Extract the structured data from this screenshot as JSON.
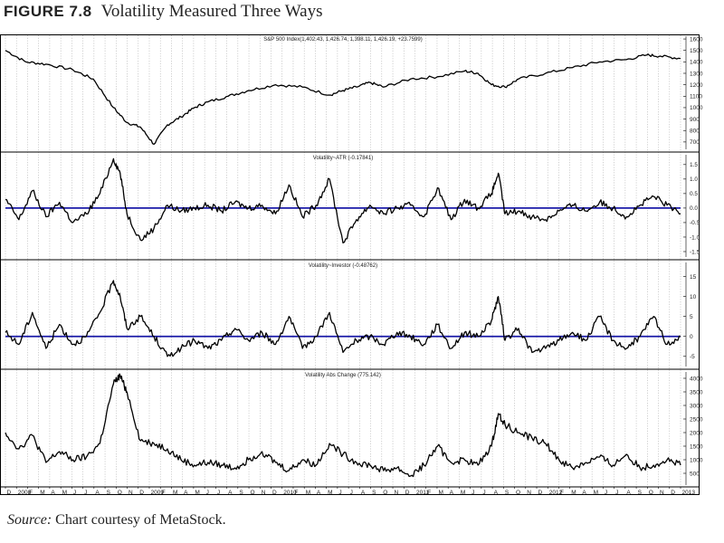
{
  "figure": {
    "number": "FIGURE 7.8",
    "title": "Volatility Measured Three Ways"
  },
  "source": {
    "prefix": "Source:",
    "text": "Chart courtesy of MetaStock."
  },
  "chart_data": [
    {
      "type": "line",
      "title": "S&P 500 Index(1,402.43, 1,426.74, 1,398.11, 1,426.19, +23.7599)",
      "yticks": [
        700,
        800,
        900,
        1000,
        1100,
        1200,
        1300,
        1400,
        1500,
        1600
      ],
      "ylim": [
        620,
        1640
      ],
      "series": [
        {
          "color": "#000000",
          "x": [
            0,
            0.03,
            0.06,
            0.1,
            0.13,
            0.16,
            0.18,
            0.2,
            0.22,
            0.24,
            0.26,
            0.28,
            0.3,
            0.33,
            0.36,
            0.4,
            0.44,
            0.48,
            0.5,
            0.52,
            0.54,
            0.56,
            0.6,
            0.64,
            0.68,
            0.7,
            0.72,
            0.74,
            0.76,
            0.8,
            0.84,
            0.88,
            0.92,
            0.95,
            0.97,
            1.0
          ],
          "y": [
            1500,
            1400,
            1380,
            1330,
            1250,
            1000,
            870,
            830,
            680,
            850,
            920,
            1000,
            1050,
            1100,
            1150,
            1200,
            1180,
            1110,
            1150,
            1180,
            1220,
            1180,
            1250,
            1270,
            1320,
            1300,
            1200,
            1180,
            1250,
            1300,
            1350,
            1400,
            1420,
            1460,
            1450,
            1430
          ]
        }
      ]
    },
    {
      "type": "line",
      "title": "Volatility~ATR (-0.17841)",
      "yticks": [
        -1.5,
        -1.0,
        -0.5,
        0.0,
        0.5,
        1.0,
        1.5
      ],
      "ylim": [
        -1.75,
        1.9
      ],
      "zero_line": 0,
      "series": [
        {
          "color": "#000000",
          "x": [
            0,
            0.02,
            0.04,
            0.06,
            0.08,
            0.1,
            0.12,
            0.14,
            0.16,
            0.17,
            0.18,
            0.2,
            0.22,
            0.24,
            0.26,
            0.28,
            0.3,
            0.32,
            0.34,
            0.36,
            0.38,
            0.4,
            0.42,
            0.44,
            0.46,
            0.48,
            0.5,
            0.52,
            0.54,
            0.56,
            0.58,
            0.6,
            0.62,
            0.64,
            0.66,
            0.68,
            0.7,
            0.72,
            0.73,
            0.74,
            0.76,
            0.78,
            0.8,
            0.82,
            0.84,
            0.86,
            0.88,
            0.9,
            0.92,
            0.94,
            0.96,
            0.98,
            1.0
          ],
          "y": [
            0.3,
            -0.4,
            0.6,
            -0.3,
            0.2,
            -0.5,
            -0.2,
            0.5,
            1.7,
            1.2,
            -0.2,
            -1.1,
            -0.7,
            0.1,
            -0.1,
            0.0,
            0.1,
            -0.1,
            0.2,
            0.0,
            0.1,
            -0.2,
            0.8,
            -0.3,
            0.1,
            1.0,
            -1.2,
            -0.4,
            0.1,
            -0.2,
            0.0,
            0.1,
            -0.3,
            0.7,
            -0.4,
            0.3,
            0.0,
            0.5,
            1.2,
            -0.2,
            -0.1,
            -0.3,
            -0.4,
            -0.1,
            0.1,
            -0.1,
            0.2,
            0.0,
            -0.3,
            0.1,
            0.4,
            0.1,
            -0.2
          ]
        }
      ]
    },
    {
      "type": "line",
      "title": "Volatility~Investor (-0.48762)",
      "yticks": [
        -5,
        0,
        5,
        10,
        15
      ],
      "ylim": [
        -8,
        19
      ],
      "zero_line": 0,
      "series": [
        {
          "color": "#000000",
          "x": [
            0,
            0.02,
            0.04,
            0.06,
            0.08,
            0.1,
            0.12,
            0.14,
            0.16,
            0.17,
            0.18,
            0.2,
            0.22,
            0.24,
            0.26,
            0.28,
            0.3,
            0.32,
            0.34,
            0.36,
            0.38,
            0.4,
            0.42,
            0.44,
            0.46,
            0.48,
            0.5,
            0.52,
            0.54,
            0.56,
            0.58,
            0.6,
            0.62,
            0.64,
            0.66,
            0.68,
            0.7,
            0.72,
            0.73,
            0.74,
            0.76,
            0.78,
            0.8,
            0.82,
            0.84,
            0.86,
            0.88,
            0.9,
            0.92,
            0.94,
            0.96,
            0.98,
            1.0
          ],
          "y": [
            1,
            -2,
            6,
            -3,
            3,
            -2,
            0,
            6,
            14,
            10,
            2,
            5,
            0,
            -5,
            -3,
            -1,
            -3,
            -1,
            2,
            -1,
            1,
            -2,
            5,
            -3,
            0,
            6,
            -4,
            -1,
            0,
            -2,
            1,
            0,
            -2,
            3,
            -3,
            1,
            0,
            4,
            10,
            -1,
            2,
            -4,
            -3,
            -1,
            1,
            -1,
            5,
            -1,
            -3,
            0,
            5,
            -2,
            0
          ]
        }
      ]
    },
    {
      "type": "line",
      "title": "Volatility Abs Change (775.142)",
      "yticks": [
        500,
        1000,
        1500,
        2000,
        2500,
        3000,
        3500,
        4000
      ],
      "ylim": [
        0,
        4300
      ],
      "series": [
        {
          "color": "#000000",
          "x": [
            0,
            0.02,
            0.04,
            0.06,
            0.08,
            0.1,
            0.12,
            0.14,
            0.16,
            0.17,
            0.18,
            0.2,
            0.22,
            0.24,
            0.26,
            0.28,
            0.3,
            0.32,
            0.34,
            0.36,
            0.38,
            0.4,
            0.42,
            0.44,
            0.46,
            0.48,
            0.5,
            0.52,
            0.54,
            0.56,
            0.58,
            0.6,
            0.62,
            0.64,
            0.66,
            0.68,
            0.7,
            0.72,
            0.73,
            0.74,
            0.76,
            0.78,
            0.8,
            0.82,
            0.84,
            0.86,
            0.88,
            0.9,
            0.92,
            0.94,
            0.96,
            0.98,
            1.0
          ],
          "y": [
            2000,
            1400,
            1900,
            900,
            1300,
            1000,
            1100,
            1600,
            3800,
            4100,
            3500,
            1700,
            1600,
            1400,
            1000,
            800,
            900,
            800,
            700,
            1000,
            1300,
            900,
            600,
            1000,
            800,
            1600,
            1200,
            900,
            800,
            600,
            700,
            400,
            800,
            1500,
            900,
            1000,
            800,
            1500,
            2700,
            2300,
            2000,
            1800,
            1600,
            1000,
            700,
            900,
            1100,
            800,
            1200,
            700,
            800,
            1000,
            800
          ]
        }
      ]
    }
  ],
  "x_axis": {
    "ticks": [
      "D",
      "2008",
      "F",
      "M",
      "A",
      "M",
      "J",
      "J",
      "A",
      "S",
      "O",
      "N",
      "D",
      "2009",
      "F",
      "M",
      "A",
      "M",
      "J",
      "J",
      "A",
      "S",
      "O",
      "N",
      "D",
      "2010",
      "F",
      "M",
      "A",
      "M",
      "J",
      "J",
      "A",
      "S",
      "O",
      "N",
      "D",
      "2011",
      "F",
      "M",
      "A",
      "M",
      "J",
      "J",
      "A",
      "S",
      "O",
      "N",
      "D",
      "2012",
      "F",
      "M",
      "A",
      "M",
      "J",
      "J",
      "A",
      "S",
      "O",
      "N",
      "D",
      "2013"
    ]
  }
}
